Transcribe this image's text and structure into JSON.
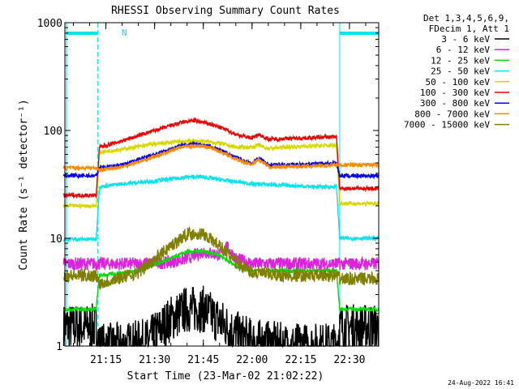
{
  "chart_data": {
    "type": "line",
    "title": "RHESSI Observing Summary Count Rates",
    "xlabel": "Start Time (23-Mar-02 21:02:22)",
    "ylabel": "Count Rate (s⁻¹ detector⁻¹)",
    "y_scale": "log",
    "ylim": [
      1,
      1000
    ],
    "xlim": [
      "21:02:22",
      "22:39:00"
    ],
    "x_ticks": [
      "21:15",
      "21:30",
      "21:45",
      "22:00",
      "22:15",
      "22:30"
    ],
    "y_ticks": [
      "1",
      "10",
      "100",
      "1000"
    ],
    "legend_header": [
      "Det 1,3,4,5,6,9,",
      "FDecim 1, Att 1"
    ],
    "legend_position": "top-right outside",
    "footer": "24-Aug-2022 16:41",
    "flag_label": "N",
    "night_intervals": [
      [
        "21:02:22",
        "21:12:30"
      ],
      [
        "22:26:30",
        "22:39:00"
      ]
    ],
    "series": [
      {
        "name": "3 - 6 keV",
        "color": "#000000",
        "x": [
          "21:02",
          "21:12",
          "21:13",
          "21:20",
          "21:28",
          "21:35",
          "21:40",
          "21:45",
          "21:50",
          "21:55",
          "22:00",
          "22:10",
          "22:20",
          "22:26",
          "22:27",
          "22:35",
          "22:39"
        ],
        "values": [
          1.5,
          1.5,
          1.0,
          1.0,
          1.1,
          1.8,
          2.2,
          2.2,
          1.7,
          1.3,
          1.1,
          1.0,
          1.0,
          1.0,
          1.5,
          1.5,
          1.5
        ]
      },
      {
        "name": "6 - 12 keV",
        "color": "#dd22dd",
        "x": [
          "21:02",
          "21:12",
          "21:13",
          "21:25",
          "21:35",
          "21:40",
          "21:45",
          "21:50",
          "21:52",
          "21:55",
          "22:00",
          "22:10",
          "22:26",
          "22:27",
          "22:39"
        ],
        "values": [
          5.8,
          5.8,
          5.8,
          5.8,
          6.0,
          6.5,
          7.5,
          7.0,
          8.5,
          6.5,
          5.8,
          5.8,
          5.8,
          5.8,
          5.8
        ]
      },
      {
        "name": "12 - 25 keV",
        "color": "#00dd00",
        "x": [
          "21:02",
          "21:12",
          "21:13",
          "21:25",
          "21:35",
          "21:40",
          "21:45",
          "21:50",
          "21:55",
          "22:00",
          "22:10",
          "22:26",
          "22:27",
          "22:39"
        ],
        "values": [
          2.2,
          2.2,
          4.5,
          5.0,
          6.5,
          7.5,
          7.5,
          7.0,
          5.5,
          5.0,
          5.0,
          5.0,
          2.2,
          2.2
        ]
      },
      {
        "name": "25 - 50 keV",
        "color": "#00e5ee",
        "x": [
          "21:02",
          "21:12",
          "21:13",
          "21:20",
          "21:30",
          "21:40",
          "21:45",
          "21:50",
          "22:00",
          "22:10",
          "22:20",
          "22:26",
          "22:27",
          "22:39"
        ],
        "values": [
          9.8,
          9.8,
          30,
          32,
          34,
          37,
          37,
          35,
          32,
          31,
          30,
          30,
          10,
          10
        ]
      },
      {
        "name": "50 - 100 keV",
        "color": "#d7d700",
        "x": [
          "21:02",
          "21:12",
          "21:13",
          "21:20",
          "21:30",
          "21:40",
          "21:45",
          "21:50",
          "21:55",
          "22:00",
          "22:02",
          "22:05",
          "22:10",
          "22:20",
          "22:26",
          "22:27",
          "22:39"
        ],
        "values": [
          20,
          20,
          63,
          67,
          75,
          80,
          80,
          76,
          70,
          70,
          73,
          68,
          70,
          72,
          73,
          21,
          21
        ]
      },
      {
        "name": "100 - 300 keV",
        "color": "#ee0000",
        "x": [
          "21:02",
          "21:12",
          "21:13",
          "21:20",
          "21:30",
          "21:38",
          "21:42",
          "21:47",
          "21:52",
          "21:55",
          "22:00",
          "22:02",
          "22:05",
          "22:10",
          "22:20",
          "22:26",
          "22:27",
          "22:39"
        ],
        "values": [
          25,
          25,
          70,
          80,
          100,
          118,
          124,
          115,
          102,
          92,
          85,
          92,
          83,
          84,
          86,
          88,
          29,
          29
        ]
      },
      {
        "name": "300 - 800 keV",
        "color": "#0000ee",
        "x": [
          "21:02",
          "21:12",
          "21:13",
          "21:20",
          "21:30",
          "21:38",
          "21:42",
          "21:47",
          "21:52",
          "21:57",
          "22:00",
          "22:02",
          "22:05",
          "22:10",
          "22:20",
          "22:26",
          "22:27",
          "22:39"
        ],
        "values": [
          38,
          38,
          45,
          48,
          60,
          72,
          76,
          72,
          62,
          53,
          49,
          56,
          48,
          48,
          49,
          50,
          38,
          38
        ]
      },
      {
        "name": "800 - 7000 keV",
        "color": "#ff8800",
        "x": [
          "21:02",
          "21:12",
          "21:13",
          "21:20",
          "21:30",
          "21:38",
          "21:42",
          "21:47",
          "21:52",
          "21:57",
          "22:00",
          "22:02",
          "22:05",
          "22:10",
          "22:20",
          "22:26",
          "22:27",
          "22:39"
        ],
        "values": [
          45,
          45,
          43,
          46,
          57,
          70,
          72,
          70,
          60,
          51,
          48,
          54,
          46,
          46,
          47,
          48,
          48,
          48
        ]
      },
      {
        "name": "7000 - 15000 keV",
        "color": "#808000",
        "x": [
          "21:02",
          "21:12",
          "21:13",
          "21:25",
          "21:35",
          "21:40",
          "21:45",
          "21:50",
          "21:55",
          "22:00",
          "22:10",
          "22:26",
          "22:27",
          "22:39"
        ],
        "values": [
          4.5,
          4.5,
          3.8,
          4.8,
          8.5,
          11,
          11,
          8.5,
          6.0,
          4.8,
          4.5,
          4.5,
          4.2,
          4.2
        ]
      }
    ]
  }
}
